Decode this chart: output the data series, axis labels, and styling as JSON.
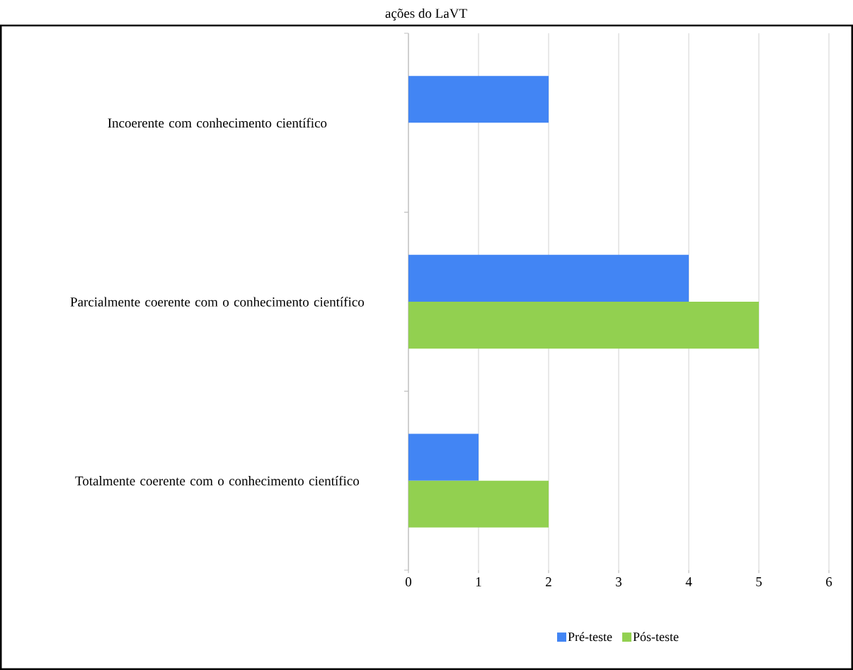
{
  "chart_data": {
    "type": "bar",
    "orientation": "horizontal",
    "title": "ações do LaVT",
    "categories": [
      "Incoerente com conhecimento científico",
      "Parcialmente coerente com o conhecimento científico",
      "Totalmente coerente com o conhecimento científico"
    ],
    "series": [
      {
        "name": "Pré-teste",
        "color": "#4285f4",
        "values": [
          2,
          4,
          1
        ]
      },
      {
        "name": "Pós-teste",
        "color": "#92d050",
        "values": [
          null,
          5,
          2
        ]
      }
    ],
    "xlim": [
      0,
      6
    ],
    "xticks": [
      0,
      1,
      2,
      3,
      4,
      5,
      6
    ],
    "grid": "x",
    "legend": "bottom"
  }
}
